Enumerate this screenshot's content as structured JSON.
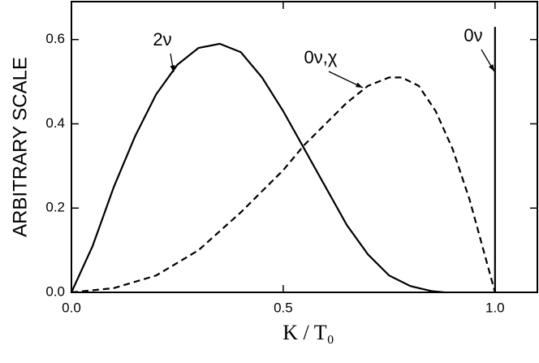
{
  "chart_data": {
    "type": "line",
    "xlabel": "K / T₀",
    "ylabel": "ARBITRARY SCALE",
    "xlim": [
      0,
      1.1
    ],
    "ylim": [
      0,
      0.69
    ],
    "xticks": [
      {
        "value": 0,
        "label": "0.0"
      },
      0.5,
      {
        "value": 1,
        "label": "1.0"
      }
    ],
    "yticks": [
      {
        "value": 0,
        "label": "0.0"
      },
      0.2,
      0.4,
      0.6
    ],
    "series": [
      {
        "name": "2ν",
        "color": "#000000",
        "dash": false,
        "x": [
          0,
          0.05,
          0.1,
          0.15,
          0.2,
          0.25,
          0.3,
          0.35,
          0.4,
          0.45,
          0.5,
          0.55,
          0.6,
          0.65,
          0.7,
          0.75,
          0.8,
          0.85,
          0.88
        ],
        "values": [
          0,
          0.11,
          0.25,
          0.37,
          0.47,
          0.54,
          0.58,
          0.59,
          0.57,
          0.51,
          0.43,
          0.34,
          0.25,
          0.16,
          0.09,
          0.04,
          0.015,
          0.003,
          0
        ]
      },
      {
        "name": "0ν,χ",
        "color": "#000000",
        "dash": true,
        "x": [
          0,
          0.1,
          0.2,
          0.3,
          0.4,
          0.5,
          0.55,
          0.6,
          0.65,
          0.7,
          0.75,
          0.78,
          0.82,
          0.86,
          0.9,
          0.94,
          0.97,
          1.0
        ],
        "values": [
          0,
          0.01,
          0.04,
          0.1,
          0.19,
          0.29,
          0.35,
          0.4,
          0.45,
          0.49,
          0.51,
          0.51,
          0.49,
          0.43,
          0.34,
          0.22,
          0.11,
          0
        ]
      },
      {
        "name": "0ν",
        "color": "#000000",
        "dash": false,
        "x": [
          1,
          1
        ],
        "values": [
          0,
          0.63
        ]
      }
    ]
  }
}
